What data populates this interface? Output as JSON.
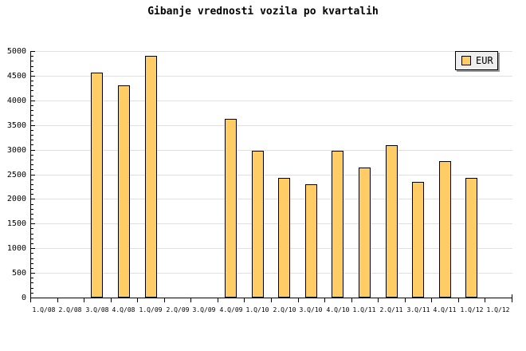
{
  "chart_data": {
    "type": "bar",
    "title": "Gibanje vrednosti vozila po kvartalih",
    "categories": [
      "1.Q/08",
      "2.Q/08",
      "3.Q/08",
      "4.Q/08",
      "1.Q/09",
      "2.Q/09",
      "3.Q/09",
      "4.Q/09",
      "1.Q/10",
      "2.Q/10",
      "3.Q/10",
      "4.Q/10",
      "1.Q/11",
      "2.Q/11",
      "3.Q/11",
      "4.Q/11",
      "1.Q/12",
      "1.Q/12"
    ],
    "series": [
      {
        "name": "EUR",
        "values": [
          null,
          null,
          4560,
          4310,
          4900,
          null,
          null,
          3630,
          2980,
          2420,
          2300,
          2980,
          2630,
          3090,
          2350,
          2760,
          2420,
          null
        ]
      }
    ],
    "xlabel": "",
    "ylabel": "",
    "ylim": [
      0,
      5000
    ],
    "yticks": [
      0,
      500,
      1000,
      1500,
      2000,
      2500,
      3000,
      3500,
      4000,
      4500,
      5000
    ],
    "yminor_step": 100,
    "grid": "horizontal-major",
    "legend_position": "top-right",
    "colors": {
      "bar_fill": "#FFCC66",
      "bar_border": "#000000",
      "gridline": "#E0E0E0",
      "axis": "#000000",
      "legend_bg": "#EEEEEE",
      "legend_shadow": "#999999",
      "background": "#FFFFFF",
      "text": "#000000"
    }
  }
}
